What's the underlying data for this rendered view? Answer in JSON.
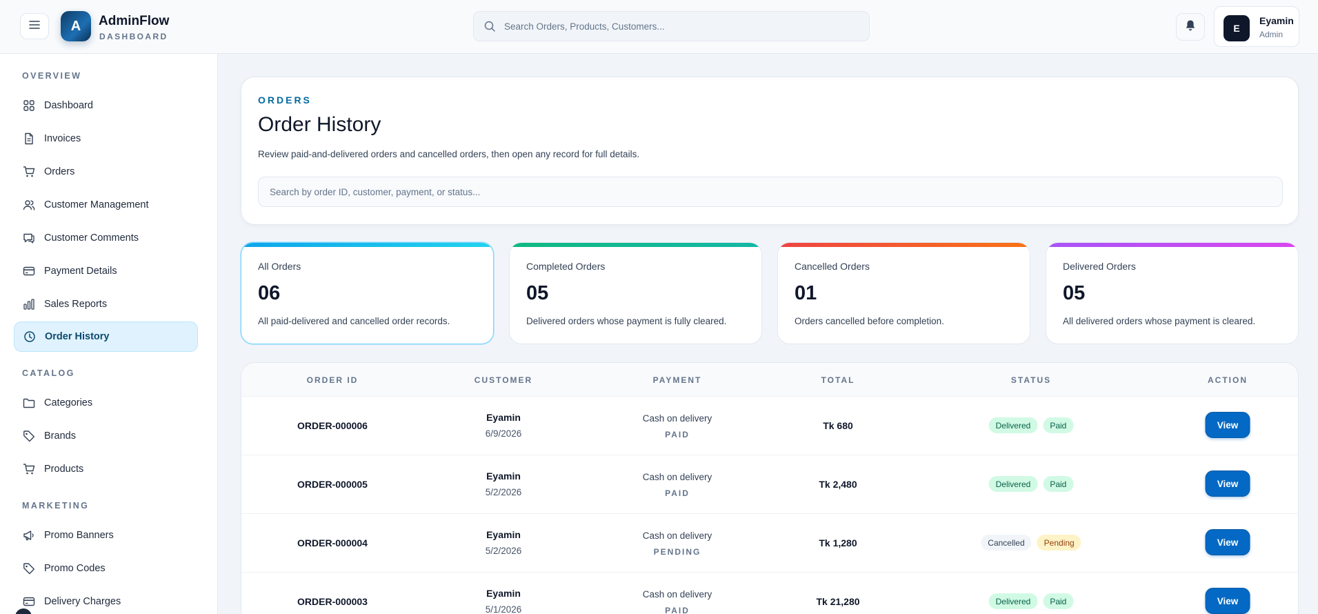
{
  "app": {
    "brand_name": "AdminFlow",
    "brand_sub": "DASHBOARD",
    "logo_letter": "A",
    "search_placeholder": "Search Orders, Products, Customers...",
    "user": {
      "initial": "E",
      "name": "Eyamin",
      "role": "Admin"
    }
  },
  "sidebar": {
    "overview_title": "OVERVIEW",
    "catalog_title": "CATALOG",
    "marketing_title": "MARKETING",
    "overview_items": [
      {
        "label": "Dashboard",
        "icon": "grid-icon"
      },
      {
        "label": "Invoices",
        "icon": "file-icon"
      },
      {
        "label": "Orders",
        "icon": "cart-icon"
      },
      {
        "label": "Customer Management",
        "icon": "users-icon"
      },
      {
        "label": "Customer Comments",
        "icon": "comment-icon"
      },
      {
        "label": "Payment Details",
        "icon": "card-icon"
      },
      {
        "label": "Sales Reports",
        "icon": "bar-chart-icon"
      },
      {
        "label": "Order History",
        "icon": "clock-icon",
        "active": true
      }
    ],
    "catalog_items": [
      {
        "label": "Categories",
        "icon": "folder-icon"
      },
      {
        "label": "Brands",
        "icon": "tag-icon"
      },
      {
        "label": "Products",
        "icon": "cart-icon"
      }
    ],
    "marketing_items": [
      {
        "label": "Promo Banners",
        "icon": "megaphone-icon"
      },
      {
        "label": "Promo Codes",
        "icon": "tag-icon"
      },
      {
        "label": "Delivery Charges",
        "icon": "card-icon"
      }
    ]
  },
  "page": {
    "eyebrow": "ORDERS",
    "title": "Order History",
    "description": "Review paid-and-delivered orders and cancelled orders, then open any record for full details.",
    "filter_placeholder": "Search by order ID, customer, payment, or status..."
  },
  "stats": [
    {
      "label": "All Orders",
      "value": "06",
      "desc": "All paid-delivered and cancelled order records.",
      "color": "#0ea5e9"
    },
    {
      "label": "Completed Orders",
      "value": "05",
      "desc": "Delivered orders whose payment is fully cleared.",
      "color": "#10b981"
    },
    {
      "label": "Cancelled Orders",
      "value": "01",
      "desc": "Orders cancelled before completion.",
      "color": "#ef4444"
    },
    {
      "label": "Delivered Orders",
      "value": "05",
      "desc": "All delivered orders whose payment is cleared.",
      "color": "#a855f7"
    }
  ],
  "table": {
    "headers": [
      "ORDER ID",
      "CUSTOMER",
      "PAYMENT",
      "TOTAL",
      "STATUS",
      "ACTION"
    ],
    "rows": [
      {
        "id": "ORDER-000006",
        "customer": "Eyamin",
        "date": "6/9/2026",
        "method": "Cash on delivery",
        "pay_status": "PAID",
        "total": "Tk 680",
        "status": "Delivered",
        "payment_badge": "Paid",
        "action": "View"
      },
      {
        "id": "ORDER-000005",
        "customer": "Eyamin",
        "date": "5/2/2026",
        "method": "Cash on delivery",
        "pay_status": "PAID",
        "total": "Tk 2,480",
        "status": "Delivered",
        "payment_badge": "Paid",
        "action": "View"
      },
      {
        "id": "ORDER-000004",
        "customer": "Eyamin",
        "date": "5/2/2026",
        "method": "Cash on delivery",
        "pay_status": "PENDING",
        "total": "Tk 1,280",
        "status": "Cancelled",
        "payment_badge": "Pending",
        "action": "View"
      },
      {
        "id": "ORDER-000003",
        "customer": "Eyamin",
        "date": "5/1/2026",
        "method": "Cash on delivery",
        "pay_status": "PAID",
        "total": "Tk 21,280",
        "status": "Delivered",
        "payment_badge": "Paid",
        "action": "View"
      }
    ]
  }
}
